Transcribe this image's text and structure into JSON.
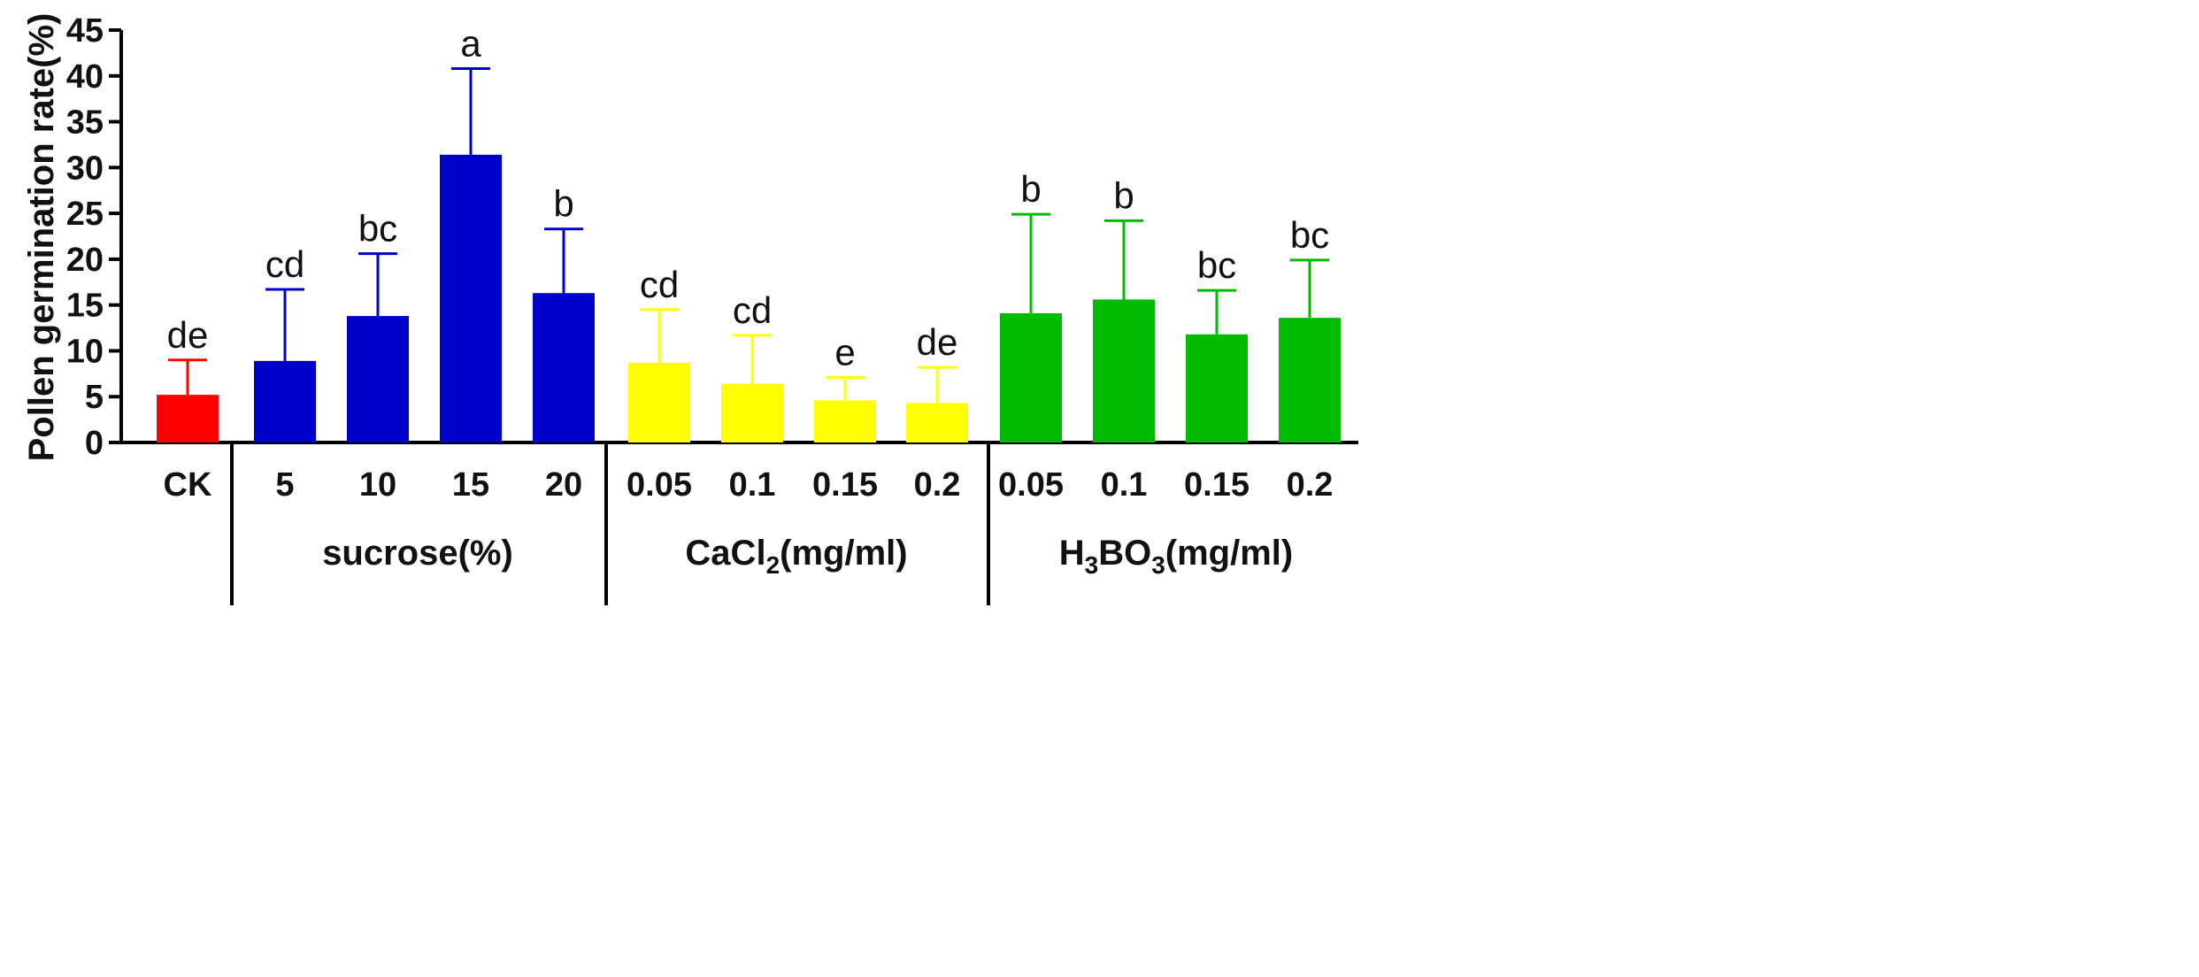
{
  "chart_data": {
    "type": "bar",
    "ylabel": "Pollen germination rate(%)",
    "ylim": [
      0,
      45
    ],
    "yticks": [
      0,
      5,
      10,
      15,
      20,
      25,
      30,
      35,
      40,
      45
    ],
    "bars": [
      {
        "category": "CK",
        "value": 5.2,
        "error": 3.8,
        "sig": "de",
        "color": "#ff0000"
      },
      {
        "category": "5",
        "value": 8.9,
        "error": 7.8,
        "sig": "cd",
        "color": "#0000cc"
      },
      {
        "category": "10",
        "value": 13.8,
        "error": 6.8,
        "sig": "bc",
        "color": "#0000cc"
      },
      {
        "category": "15",
        "value": 31.4,
        "error": 9.4,
        "sig": "a",
        "color": "#0000cc"
      },
      {
        "category": "20",
        "value": 16.3,
        "error": 7.0,
        "sig": "b",
        "color": "#0000cc"
      },
      {
        "category": "0.05",
        "value": 8.7,
        "error": 5.8,
        "sig": "cd",
        "color": "#ffff00"
      },
      {
        "category": "0.1",
        "value": 6.4,
        "error": 5.3,
        "sig": "cd",
        "color": "#ffff00"
      },
      {
        "category": "0.15",
        "value": 4.6,
        "error": 2.5,
        "sig": "e",
        "color": "#ffff00"
      },
      {
        "category": "0.2",
        "value": 4.3,
        "error": 3.9,
        "sig": "de",
        "color": "#ffff00"
      },
      {
        "category": "0.05",
        "value": 14.1,
        "error": 10.8,
        "sig": "b",
        "color": "#00bb00"
      },
      {
        "category": "0.1",
        "value": 15.6,
        "error": 8.6,
        "sig": "b",
        "color": "#00bb00"
      },
      {
        "category": "0.15",
        "value": 11.8,
        "error": 4.8,
        "sig": "bc",
        "color": "#00bb00"
      },
      {
        "category": "0.2",
        "value": 13.6,
        "error": 6.3,
        "sig": "bc",
        "color": "#00bb00"
      }
    ],
    "groups": [
      {
        "name": "sucrose",
        "label": "sucrose(%)"
      },
      {
        "name": "cacl2",
        "pre": "CaCl",
        "sub": "2",
        "post": "(mg/ml)"
      },
      {
        "name": "h3bo3",
        "pre": "H",
        "sub1": "3",
        "mid": "BO",
        "sub2": "3",
        "post": "(mg/ml)"
      }
    ]
  }
}
